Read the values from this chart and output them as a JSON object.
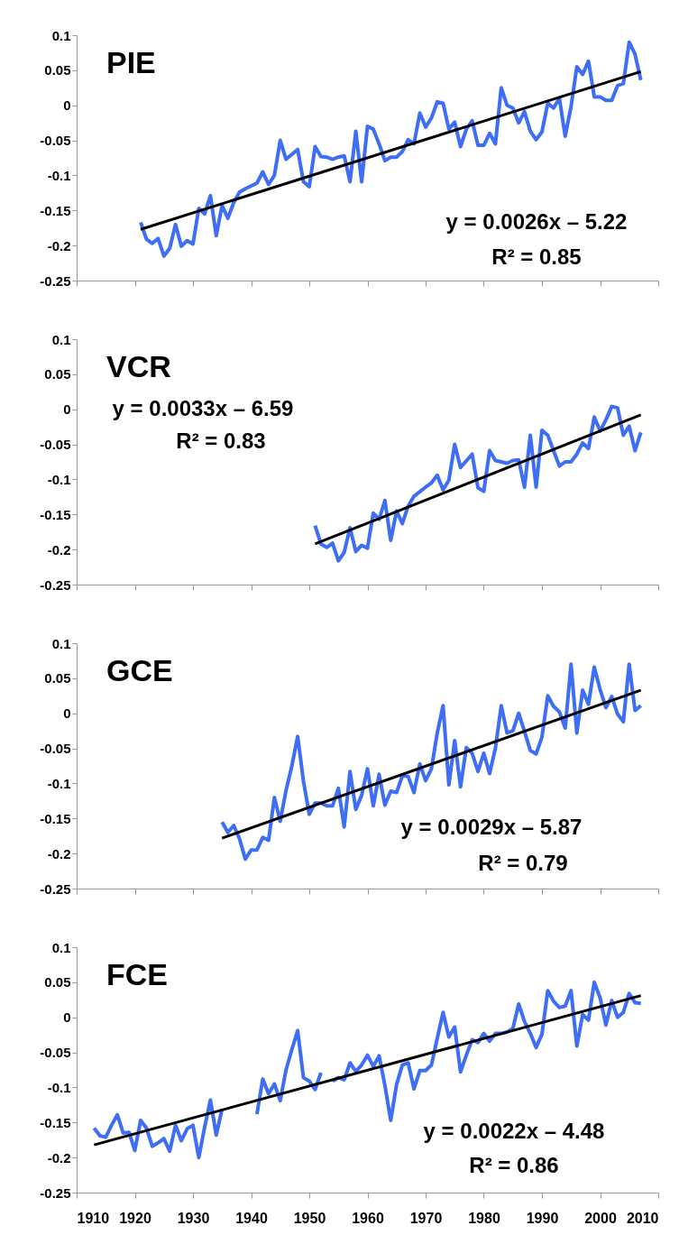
{
  "chart_data": [
    {
      "type": "line",
      "title": "PIE",
      "xlim": [
        1910,
        2010
      ],
      "xticks": [
        1910,
        1920,
        1930,
        1940,
        1950,
        1960,
        1970,
        1980,
        1990,
        2000,
        2010
      ],
      "ylim": [
        -0.25,
        0.1
      ],
      "yticks": [
        0.1,
        0.05,
        0,
        -0.05,
        -0.1,
        -0.15,
        -0.2,
        -0.25
      ],
      "tick_labels": "y",
      "grid": false,
      "annotations": [
        "y  = 0.0026x – 5.22",
        "R² = 0.85"
      ],
      "series": [
        {
          "color": "#3d6ef5",
          "x": [
            1921,
            1922,
            1923,
            1924,
            1925,
            1926,
            1927,
            1928,
            1929,
            1930,
            1931,
            1932,
            1933,
            1934,
            1935,
            1936,
            1937,
            1938,
            1939,
            1941,
            1942,
            1943,
            1944,
            1945,
            1946,
            1948,
            1949,
            1950,
            1951,
            1952,
            1953,
            1954,
            1955,
            1956,
            1957,
            1958,
            1959,
            1960,
            1961,
            1962,
            1963,
            1964,
            1965,
            1966,
            1967,
            1968,
            1969,
            1970,
            1971,
            1972,
            1973,
            1974,
            1975,
            1976,
            1977,
            1978,
            1979,
            1980,
            1981,
            1982,
            1983,
            1984,
            1985,
            1986,
            1987,
            1988,
            1989,
            1990,
            1991,
            1992,
            1993,
            1994,
            1995,
            1996,
            1997,
            1998,
            1999,
            2000,
            2001,
            2002,
            2003,
            2004,
            2005,
            2006,
            2007
          ],
          "values": [
            -0.167,
            -0.191,
            -0.197,
            -0.19,
            -0.215,
            -0.204,
            -0.17,
            -0.201,
            -0.193,
            -0.198,
            -0.147,
            -0.155,
            -0.129,
            -0.186,
            -0.143,
            -0.161,
            -0.139,
            -0.124,
            -0.119,
            -0.111,
            -0.095,
            -0.113,
            -0.1,
            -0.05,
            -0.077,
            -0.063,
            -0.109,
            -0.116,
            -0.059,
            -0.073,
            -0.074,
            -0.077,
            -0.074,
            -0.072,
            -0.109,
            -0.037,
            -0.109,
            -0.03,
            -0.034,
            -0.055,
            -0.079,
            -0.074,
            -0.074,
            -0.066,
            -0.049,
            -0.055,
            -0.011,
            -0.031,
            -0.018,
            0.005,
            0.003,
            -0.034,
            -0.024,
            -0.059,
            -0.034,
            -0.022,
            -0.057,
            -0.057,
            -0.04,
            -0.055,
            0.025,
            0,
            -0.004,
            -0.025,
            -0.009,
            -0.037,
            -0.049,
            -0.038,
            0.003,
            -0.004,
            0.01,
            -0.044,
            -0.002,
            0.055,
            0.044,
            0.063,
            0.012,
            0.012,
            0.007,
            0.007,
            0.028,
            0.031,
            0.09,
            0.073,
            0.036
          ]
        },
        {
          "type": "line",
          "color": "#000000",
          "x": [
            1921,
            2007
          ],
          "values": [
            -0.177,
            0.048
          ]
        }
      ]
    },
    {
      "type": "line",
      "title": "VCR",
      "xlim": [
        1910,
        2010
      ],
      "xticks": [
        1910,
        1920,
        1930,
        1940,
        1950,
        1960,
        1970,
        1980,
        1990,
        2000,
        2010
      ],
      "ylim": [
        -0.25,
        0.1
      ],
      "yticks": [
        0.1,
        0.05,
        0,
        -0.05,
        -0.1,
        -0.15,
        -0.2,
        -0.25
      ],
      "tick_labels": "y",
      "grid": false,
      "annotations": [
        "y  = 0.0033x – 6.59",
        "R² = 0.83"
      ],
      "series": [
        {
          "color": "#3d6ef5",
          "x": [
            1951,
            1952,
            1953,
            1954,
            1955,
            1956,
            1957,
            1958,
            1959,
            1960,
            1961,
            1962,
            1963,
            1964,
            1965,
            1966,
            1967,
            1968,
            1970,
            1971,
            1972,
            1973,
            1974,
            1975,
            1976,
            1978,
            1979,
            1980,
            1981,
            1982,
            1983,
            1984,
            1985,
            1986,
            1987,
            1988,
            1989,
            1990,
            1991,
            1992,
            1993,
            1994,
            1995,
            1996,
            1997,
            1998,
            1999,
            2000,
            2001,
            2002,
            2003,
            2004,
            2005,
            2006,
            2007
          ],
          "values": [
            -0.166,
            -0.192,
            -0.197,
            -0.191,
            -0.216,
            -0.204,
            -0.169,
            -0.203,
            -0.194,
            -0.198,
            -0.148,
            -0.157,
            -0.13,
            -0.187,
            -0.145,
            -0.163,
            -0.138,
            -0.124,
            -0.111,
            -0.105,
            -0.094,
            -0.115,
            -0.101,
            -0.05,
            -0.083,
            -0.064,
            -0.112,
            -0.117,
            -0.059,
            -0.073,
            -0.075,
            -0.077,
            -0.073,
            -0.072,
            -0.111,
            -0.037,
            -0.111,
            -0.03,
            -0.037,
            -0.059,
            -0.081,
            -0.075,
            -0.075,
            -0.064,
            -0.048,
            -0.056,
            -0.011,
            -0.031,
            -0.015,
            0.004,
            0.002,
            -0.037,
            -0.024,
            -0.059,
            -0.033
          ]
        },
        {
          "type": "line",
          "color": "#000000",
          "x": [
            1951,
            2007
          ],
          "values": [
            -0.192,
            -0.008
          ]
        }
      ]
    },
    {
      "type": "line",
      "title": "GCE",
      "xlim": [
        1910,
        2010
      ],
      "xticks": [
        1910,
        1920,
        1930,
        1940,
        1950,
        1960,
        1970,
        1980,
        1990,
        2000,
        2010
      ],
      "ylim": [
        -0.25,
        0.1
      ],
      "yticks": [
        0.1,
        0.05,
        0,
        -0.05,
        -0.1,
        -0.15,
        -0.2,
        -0.25
      ],
      "tick_labels": "y",
      "grid": false,
      "annotations": [
        "y  = 0.0029x – 5.87",
        "R² = 0.79"
      ],
      "series": [
        {
          "color": "#3d6ef5",
          "x": [
            1935,
            1936,
            1937,
            1938,
            1939,
            1940,
            1941,
            1942,
            1943,
            1944,
            1945,
            1946,
            1947,
            1948,
            1949,
            1950,
            1951,
            1952,
            1953,
            1954,
            1955,
            1956,
            1957,
            1958,
            1959,
            1960,
            1961,
            1962,
            1963,
            1964,
            1965,
            1966,
            1967,
            1968,
            1969,
            1970,
            1971,
            1972,
            1973,
            1974,
            1975,
            1976,
            1977,
            1978,
            1979,
            1980,
            1981,
            1982,
            1983,
            1984,
            1985,
            1986,
            1987,
            1988,
            1989,
            1990,
            1991,
            1992,
            1993,
            1994,
            1995,
            1996,
            1997,
            1998,
            1999,
            2000,
            2001,
            2002,
            2003,
            2004,
            2005,
            2006,
            2007
          ],
          "values": [
            -0.155,
            -0.17,
            -0.16,
            -0.179,
            -0.208,
            -0.195,
            -0.195,
            -0.177,
            -0.181,
            -0.12,
            -0.154,
            -0.11,
            -0.075,
            -0.033,
            -0.097,
            -0.144,
            -0.128,
            -0.128,
            -0.132,
            -0.132,
            -0.107,
            -0.162,
            -0.083,
            -0.137,
            -0.117,
            -0.079,
            -0.132,
            -0.087,
            -0.131,
            -0.111,
            -0.113,
            -0.089,
            -0.09,
            -0.113,
            -0.072,
            -0.096,
            -0.079,
            -0.028,
            0.011,
            -0.102,
            -0.039,
            -0.105,
            -0.049,
            -0.057,
            -0.083,
            -0.057,
            -0.086,
            -0.05,
            0.011,
            -0.028,
            -0.025,
            0,
            -0.026,
            -0.053,
            -0.058,
            -0.034,
            0.025,
            0.01,
            0.002,
            -0.021,
            0.07,
            -0.028,
            0.033,
            0.013,
            0.066,
            0.034,
            0.008,
            0.024,
            -0.001,
            -0.012,
            0.07,
            0.004,
            0.011
          ]
        },
        {
          "type": "line",
          "color": "#000000",
          "x": [
            1935,
            2007
          ],
          "values": [
            -0.178,
            0.033
          ]
        }
      ]
    },
    {
      "type": "line",
      "title": "FCE",
      "xlim": [
        1910,
        2010
      ],
      "xticks": [
        1910,
        1920,
        1930,
        1940,
        1950,
        1960,
        1970,
        1980,
        1990,
        2000,
        2010
      ],
      "ylim": [
        -0.25,
        0.1
      ],
      "yticks": [
        0.1,
        0.05,
        0,
        -0.05,
        -0.1,
        -0.15,
        -0.2,
        -0.25
      ],
      "grid": false,
      "annotations": [
        "y  = 0.0022x – 4.48",
        "R² = 0.86"
      ],
      "series": [
        {
          "color": "#3d6ef5",
          "x": [
            1913,
            1914,
            1915,
            1916,
            1917,
            1918,
            1919,
            1920,
            1921,
            1922,
            1923,
            1924,
            1925,
            1926,
            1927,
            1928,
            1929,
            1930,
            1931,
            1932,
            1933,
            1934,
            1935,
            1936,
            1937,
            1938,
            1939,
            1940,
            1941,
            1942,
            1943,
            1944,
            1945,
            1946,
            1947,
            1948,
            1949,
            1950,
            1951,
            1952,
            1953,
            1954,
            1955,
            1956,
            1957,
            1958,
            1959,
            1960,
            1961,
            1962,
            1963,
            1964,
            1965,
            1966,
            1967,
            1968,
            1969,
            1970,
            1971,
            1972,
            1973,
            1974,
            1975,
            1976,
            1977,
            1978,
            1979,
            1980,
            1981,
            1982,
            1983,
            1984,
            1985,
            1986,
            1987,
            1988,
            1989,
            1990,
            1991,
            1992,
            1993,
            1994,
            1995,
            1996,
            1997,
            1998,
            1999,
            2000,
            2001,
            2002,
            2003,
            2004,
            2005,
            2006,
            2007
          ],
          "values": [
            -0.158,
            -0.169,
            -0.171,
            -0.154,
            -0.139,
            -0.165,
            -0.164,
            -0.19,
            -0.147,
            -0.158,
            -0.184,
            -0.179,
            -0.173,
            -0.191,
            -0.154,
            -0.176,
            -0.159,
            -0.154,
            -0.2,
            -0.157,
            -0.118,
            -0.168,
            -0.131,
            null,
            null,
            null,
            null,
            null,
            -0.138,
            -0.088,
            -0.109,
            -0.095,
            -0.119,
            -0.075,
            -0.046,
            -0.019,
            -0.086,
            -0.091,
            -0.103,
            -0.079,
            null,
            -0.091,
            -0.086,
            -0.089,
            -0.065,
            -0.077,
            -0.068,
            -0.054,
            -0.07,
            -0.055,
            -0.097,
            -0.147,
            -0.096,
            -0.068,
            -0.065,
            -0.102,
            -0.076,
            -0.076,
            -0.068,
            -0.03,
            0.007,
            -0.028,
            -0.014,
            -0.078,
            -0.054,
            -0.032,
            -0.036,
            -0.023,
            -0.034,
            -0.023,
            -0.023,
            -0.021,
            -0.016,
            0.019,
            -0.006,
            -0.023,
            -0.043,
            -0.024,
            0.038,
            0.023,
            0.014,
            0.016,
            0.038,
            -0.041,
            0.004,
            -0.004,
            0.05,
            0.028,
            -0.011,
            0.024,
            0,
            0.007,
            0.034,
            0.021,
            0.02
          ]
        },
        {
          "type": "line",
          "color": "#000000",
          "x": [
            1913,
            2007
          ],
          "values": [
            -0.182,
            0.031
          ]
        }
      ]
    }
  ]
}
